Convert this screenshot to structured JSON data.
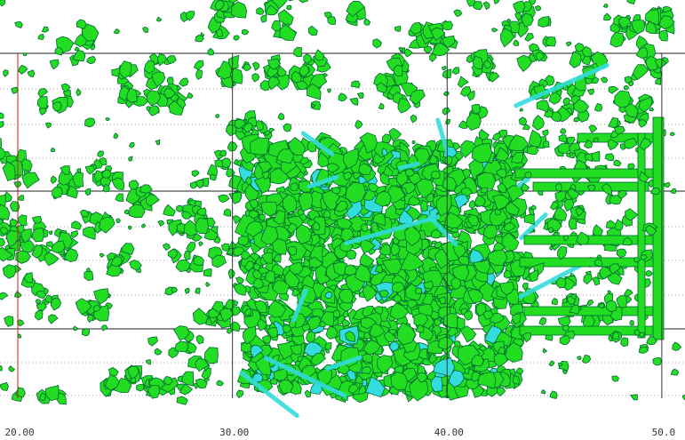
{
  "chart_data": {
    "type": "point-cloud",
    "xlim": [
      19.17,
      51.08
    ],
    "xticks": [
      {
        "value": 20,
        "label": "20.00"
      },
      {
        "value": 30,
        "label": "30.00"
      },
      {
        "value": 40,
        "label": "40.00"
      },
      {
        "value": 50,
        "label": "50.0"
      }
    ],
    "grid": true
  }
}
